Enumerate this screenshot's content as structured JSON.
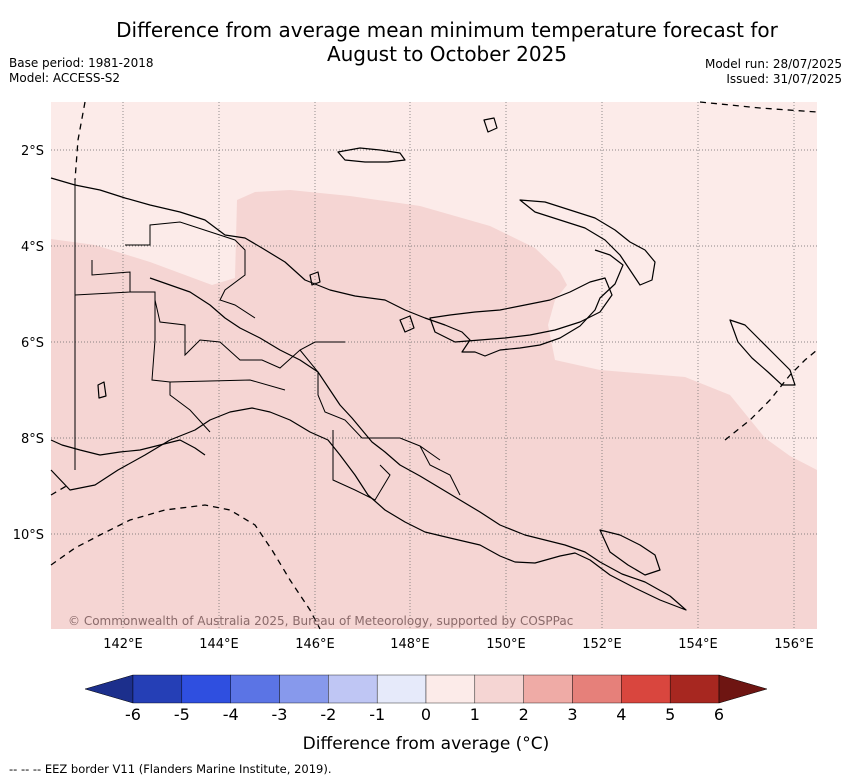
{
  "title": {
    "line1": "Difference from average mean minimum temperature forecast for",
    "line2": "August to October 2025"
  },
  "meta_left": {
    "base_period": "Base period: 1981-2018",
    "model": "Model: ACCESS-S2"
  },
  "meta_right": {
    "model_run": "Model run: 28/07/2025",
    "issued": "Issued: 31/07/2025"
  },
  "map": {
    "lon_range": [
      140.5,
      156.5
    ],
    "lat_range": [
      -12.0,
      -1.0
    ],
    "lat_ticks": [
      {
        "value": -2,
        "label": "2°S"
      },
      {
        "value": -4,
        "label": "4°S"
      },
      {
        "value": -6,
        "label": "6°S"
      },
      {
        "value": -8,
        "label": "8°S"
      },
      {
        "value": -10,
        "label": "10°S"
      }
    ],
    "lon_ticks": [
      {
        "value": 142,
        "label": "142°E"
      },
      {
        "value": 144,
        "label": "144°E"
      },
      {
        "value": 146,
        "label": "146°E"
      },
      {
        "value": 148,
        "label": "148°E"
      },
      {
        "value": 150,
        "label": "150°E"
      },
      {
        "value": 152,
        "label": "152°E"
      },
      {
        "value": 154,
        "label": "154°E"
      },
      {
        "value": 156,
        "label": "156°E"
      }
    ],
    "gridlines": true,
    "shaded_categories": [
      "0 to 1",
      "1 to 2"
    ],
    "copyright": "© Commonwealth of Australia 2025, Bureau of Meteorology, supported by COSPPac"
  },
  "colorbar": {
    "label": "Difference from average (°C)",
    "ticks": [
      "-6",
      "-5",
      "-4",
      "-3",
      "-2",
      "-1",
      "0",
      "1",
      "2",
      "3",
      "4",
      "5",
      "6"
    ],
    "colors": [
      "#1c2f8c",
      "#253fb6",
      "#2f4fe0",
      "#5b74e5",
      "#8799ec",
      "#bfc6f4",
      "#e6eafa",
      "#fcebe9",
      "#f5d5d3",
      "#efaba6",
      "#e6807a",
      "#d9463e",
      "#a72720",
      "#6e1512"
    ]
  },
  "footer": {
    "legend_text": "--  --  -- EEZ border V11 (Flanders Marine Institute, 2019)."
  }
}
